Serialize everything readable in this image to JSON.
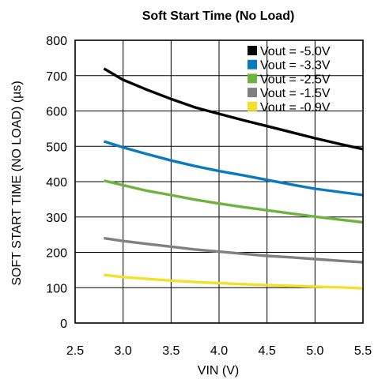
{
  "chart_data": {
    "type": "line",
    "title": "Soft Start Time (No Load)",
    "xlabel": "VIN (V)",
    "ylabel": "SOFT START TIME (NO LOAD) (µs)",
    "xlim": [
      2.5,
      5.5
    ],
    "ylim": [
      0,
      800
    ],
    "x_ticks": [
      2.5,
      3.0,
      3.5,
      4.0,
      4.5,
      5.0,
      5.5
    ],
    "x_tick_labels": [
      "2.5",
      "3.0",
      "3.5",
      "4.0",
      "4.5",
      "5.0",
      "5.5"
    ],
    "y_ticks": [
      0,
      100,
      200,
      300,
      400,
      500,
      600,
      700,
      800
    ],
    "y_tick_labels": [
      "0",
      "100",
      "200",
      "300",
      "400",
      "500",
      "600",
      "700",
      "800"
    ],
    "grid": true,
    "legend_position": "top-right",
    "series": [
      {
        "name": "Vout = -5.0V",
        "color": "#000000",
        "x": [
          2.8,
          3.0,
          3.25,
          3.5,
          3.75,
          4.0,
          4.25,
          4.5,
          4.75,
          5.0,
          5.25,
          5.5
        ],
        "y": [
          720,
          688,
          660,
          634,
          610,
          592,
          574,
          557,
          540,
          523,
          507,
          492
        ]
      },
      {
        "name": "Vout = -3.3V",
        "color": "#0a7abf",
        "x": [
          2.8,
          3.0,
          3.25,
          3.5,
          3.75,
          4.0,
          4.25,
          4.5,
          4.75,
          5.0,
          5.25,
          5.5
        ],
        "y": [
          514,
          497,
          478,
          460,
          444,
          430,
          418,
          405,
          392,
          380,
          371,
          362
        ]
      },
      {
        "name": "Vout = -2.5V",
        "color": "#6db33f",
        "x": [
          2.8,
          3.0,
          3.25,
          3.5,
          3.75,
          4.0,
          4.25,
          4.5,
          4.75,
          5.0,
          5.25,
          5.5
        ],
        "y": [
          403,
          390,
          374,
          362,
          349,
          338,
          328,
          319,
          310,
          301,
          293,
          285
        ]
      },
      {
        "name": "Vout = -1.5V",
        "color": "#808080",
        "x": [
          2.8,
          3.0,
          3.25,
          3.5,
          3.75,
          4.0,
          4.25,
          4.5,
          4.75,
          5.0,
          5.25,
          5.5
        ],
        "y": [
          240,
          232,
          224,
          216,
          208,
          202,
          196,
          190,
          186,
          181,
          176,
          172
        ]
      },
      {
        "name": "Vout = -0.9V",
        "color": "#f2e02a",
        "x": [
          2.8,
          3.0,
          3.25,
          3.5,
          3.75,
          4.0,
          4.25,
          4.5,
          4.75,
          5.0,
          5.25,
          5.5
        ],
        "y": [
          136,
          130,
          125,
          120,
          116,
          113,
          110,
          107,
          105,
          103,
          101,
          98
        ]
      }
    ]
  }
}
